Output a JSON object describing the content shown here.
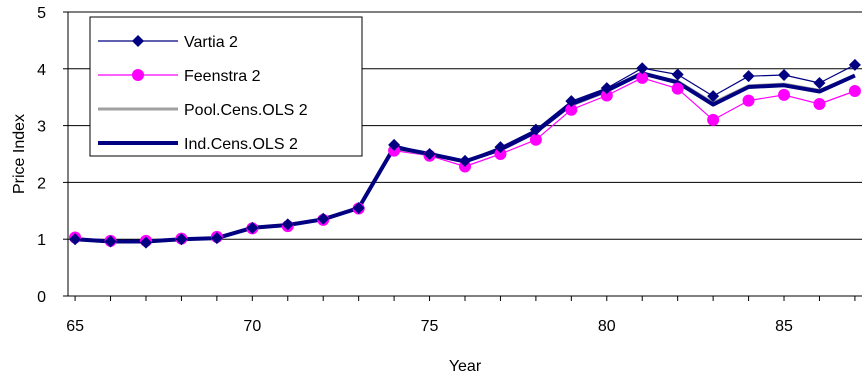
{
  "chart_data": {
    "type": "line",
    "title": "",
    "xlabel": "Year",
    "ylabel": "Price Index",
    "xlim": [
      64.8,
      87.2
    ],
    "ylim": [
      0,
      5
    ],
    "xticks": [
      65,
      70,
      75,
      80,
      85
    ],
    "yticks": [
      0,
      1,
      2,
      3,
      4,
      5
    ],
    "grid": "horizontal",
    "legend_position": "top-left",
    "x": [
      65,
      66,
      67,
      68,
      69,
      70,
      71,
      72,
      73,
      74,
      75,
      76,
      77,
      78,
      79,
      80,
      81,
      82,
      83,
      84,
      85,
      86,
      87
    ],
    "series": [
      {
        "name": "Vartia 2",
        "color": "#000080",
        "marker": "diamond",
        "values": [
          1.0,
          0.96,
          0.94,
          1.0,
          1.02,
          1.2,
          1.26,
          1.36,
          1.55,
          2.66,
          2.5,
          2.38,
          2.62,
          2.93,
          3.43,
          3.66,
          4.01,
          3.9,
          3.52,
          3.87,
          3.89,
          3.75,
          4.07
        ]
      },
      {
        "name": "Feenstra 2",
        "color": "#ff00ff",
        "marker": "circle",
        "values": [
          1.03,
          0.97,
          0.97,
          1.01,
          1.04,
          1.19,
          1.23,
          1.34,
          1.54,
          2.56,
          2.47,
          2.28,
          2.5,
          2.75,
          3.28,
          3.53,
          3.84,
          3.65,
          3.1,
          3.44,
          3.54,
          3.38,
          3.61
        ]
      },
      {
        "name": "Pool.Cens.OLS 2",
        "color": "#a0a0a0",
        "marker": "none",
        "values": [
          1.0,
          0.96,
          0.96,
          1.0,
          1.02,
          1.19,
          1.25,
          1.35,
          1.54,
          2.6,
          2.49,
          2.36,
          2.58,
          2.88,
          3.36,
          3.6,
          3.92,
          3.78,
          3.4,
          3.7,
          3.73,
          3.62,
          3.88
        ]
      },
      {
        "name": "Ind.Cens.OLS 2",
        "color": "#000080",
        "marker": "none",
        "values": [
          1.0,
          0.96,
          0.96,
          1.0,
          1.02,
          1.2,
          1.25,
          1.35,
          1.55,
          2.62,
          2.5,
          2.37,
          2.58,
          2.89,
          3.38,
          3.62,
          3.92,
          3.76,
          3.37,
          3.68,
          3.71,
          3.6,
          3.88
        ]
      }
    ]
  }
}
